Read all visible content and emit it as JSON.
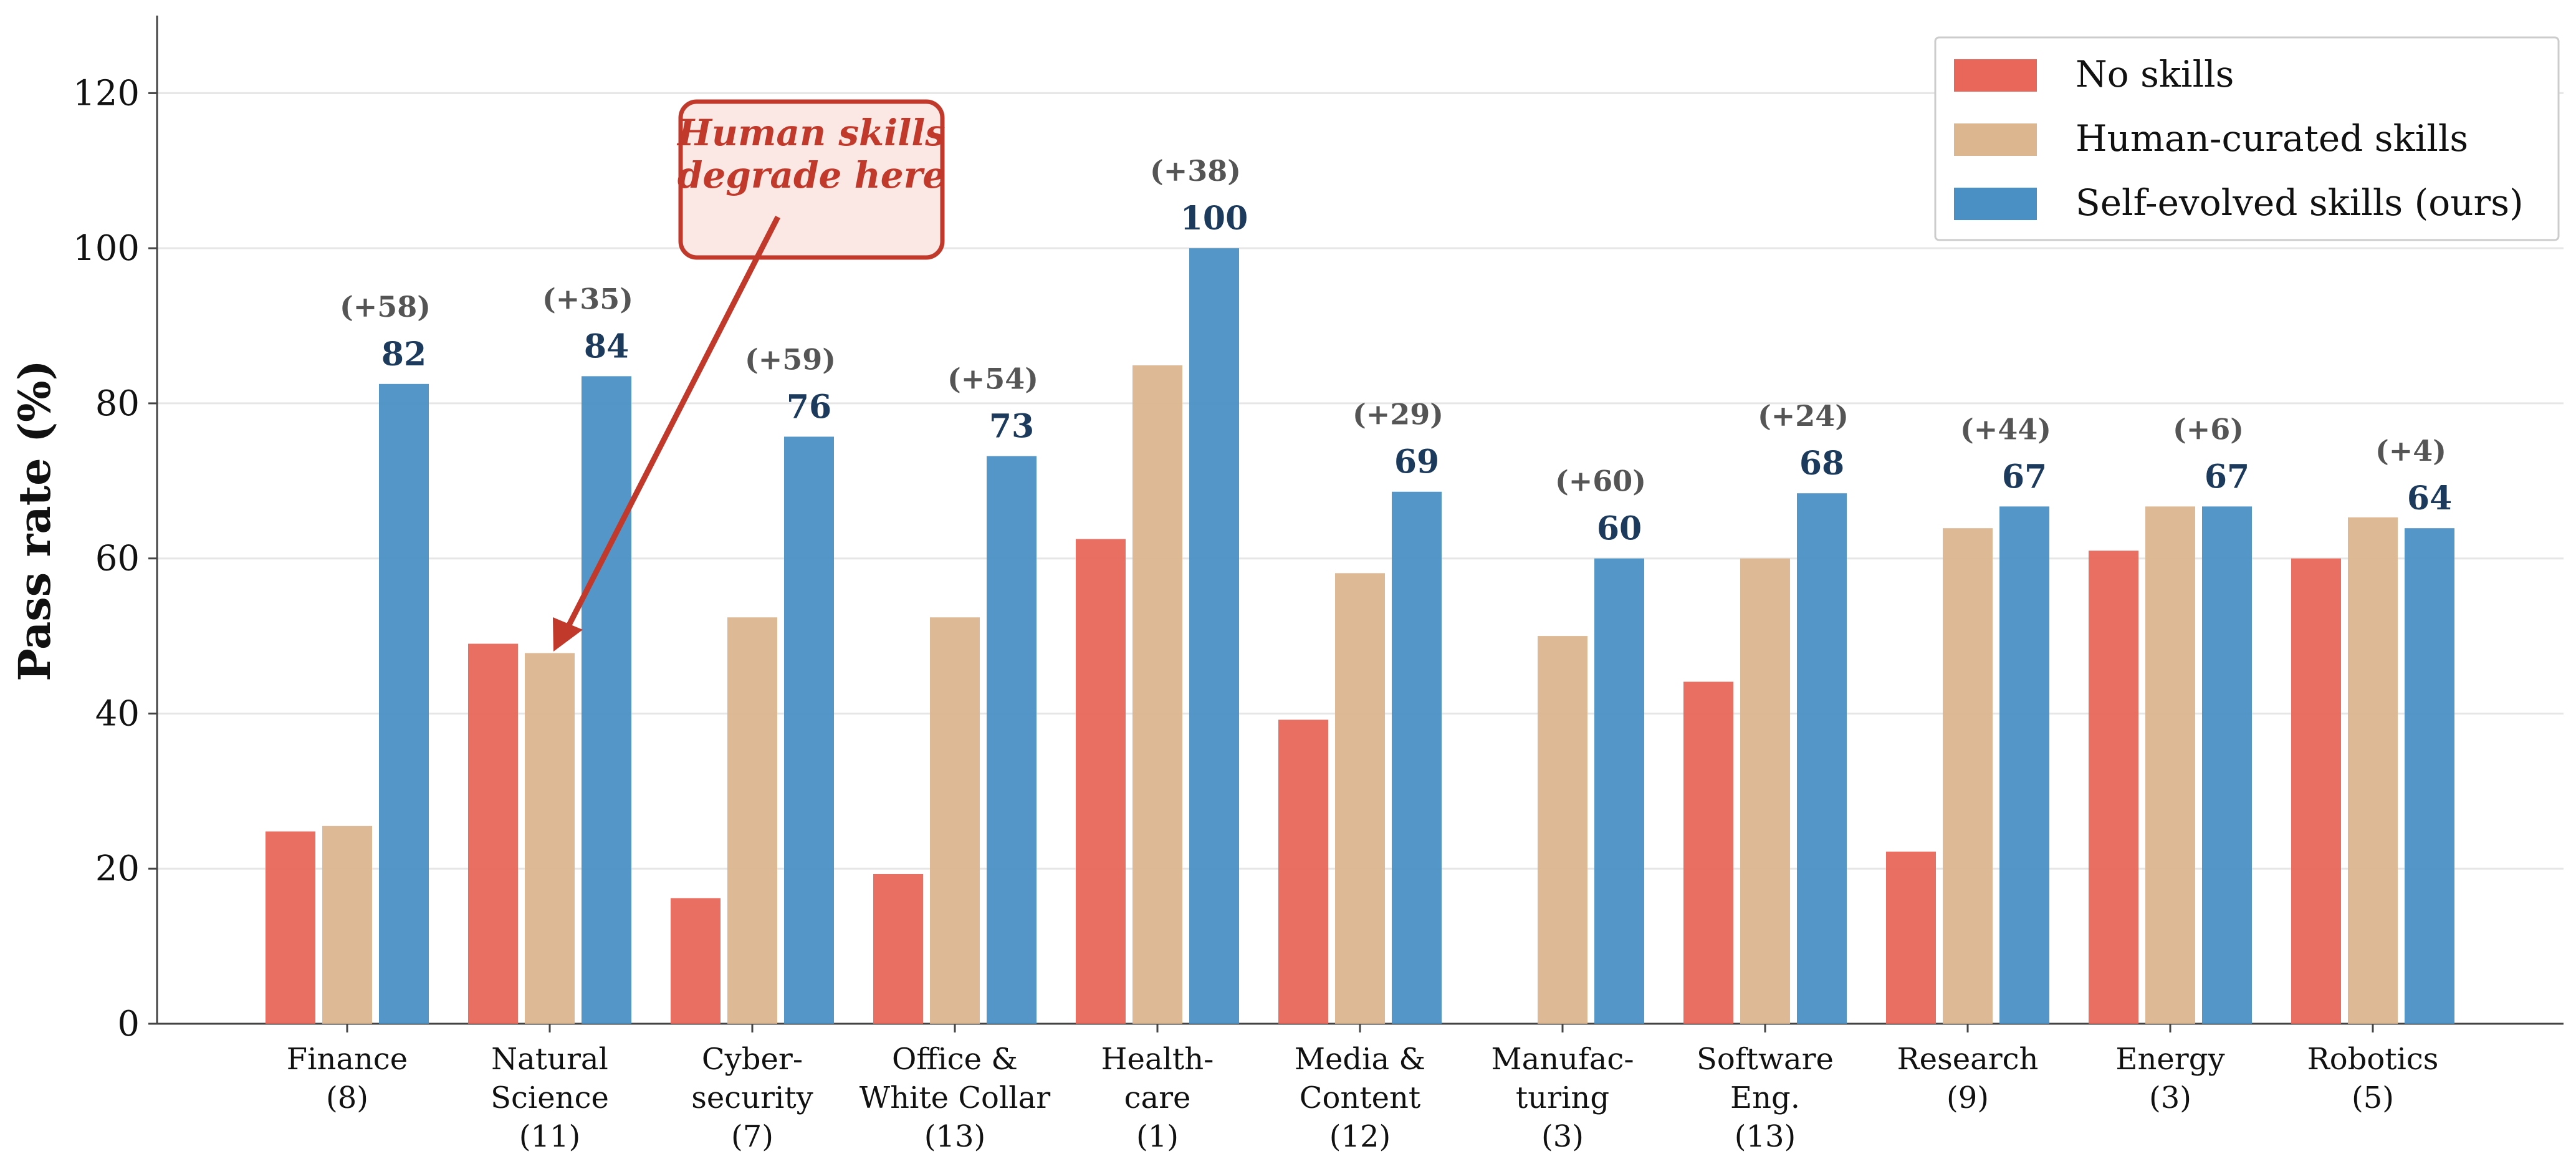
{
  "chart_data": {
    "type": "bar",
    "title": "",
    "xlabel": "",
    "ylabel": "Pass rate (%)",
    "ylim": [
      0,
      130
    ],
    "yticks": [
      0,
      20,
      40,
      60,
      80,
      100,
      120
    ],
    "grid": true,
    "legend_position": "top-right",
    "categories": [
      [
        "Finance",
        "(8)"
      ],
      [
        "Natural",
        "Science",
        "(11)"
      ],
      [
        "Cyber-",
        "security",
        "(7)"
      ],
      [
        "Office &",
        "White Collar",
        "(13)"
      ],
      [
        "Health-",
        "care",
        "(1)"
      ],
      [
        "Media &",
        "Content",
        "(12)"
      ],
      [
        "Manufac-",
        "turing",
        "(3)"
      ],
      [
        "Software",
        "Eng.",
        "(13)"
      ],
      [
        "Research",
        "(9)"
      ],
      [
        "Energy",
        "(3)"
      ],
      [
        "Robotics",
        "(5)"
      ]
    ],
    "series": [
      {
        "name": "No skills",
        "color": "#e8675a",
        "values": [
          24.8,
          49,
          16.2,
          19.3,
          62.5,
          39.2,
          0,
          44.1,
          22.2,
          61,
          60
        ]
      },
      {
        "name": "Human-curated skills",
        "color": "#dbb68f",
        "values": [
          25.5,
          47.8,
          52.4,
          52.4,
          84.9,
          58.1,
          50,
          60,
          63.9,
          66.7,
          65.3
        ]
      },
      {
        "name": "Self-evolved skills (ours)",
        "color": "#4a90c4",
        "values": [
          82.5,
          83.5,
          75.7,
          73.2,
          100,
          68.6,
          60,
          68.4,
          66.7,
          66.7,
          63.9
        ]
      }
    ],
    "value_labels": [
      "82",
      "84",
      "76",
      "73",
      "100",
      "69",
      "60",
      "68",
      "67",
      "67",
      "64"
    ],
    "delta_labels": [
      "(+58)",
      "(+35)",
      "(+59)",
      "(+54)",
      "(+38)",
      "(+29)",
      "(+60)",
      "(+24)",
      "(+44)",
      "(+6)",
      "(+4)"
    ],
    "annotation": {
      "lines": [
        "Human skills",
        "degrade here"
      ],
      "color": "#c0392b",
      "box_fill": "#fbe7e4"
    }
  }
}
